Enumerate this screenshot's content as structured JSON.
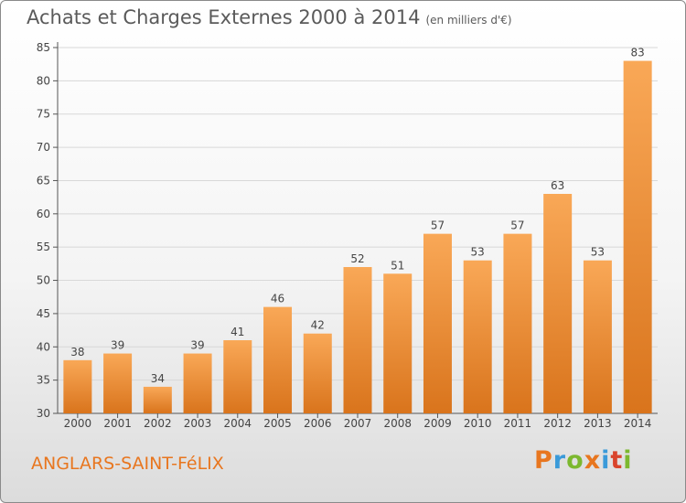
{
  "title": "Achats et Charges Externes 2000 à 2014",
  "unit_label": "(en milliers d'€)",
  "location": "ANGLARS-SAINT-FéLIX",
  "logo_text": "Proxiti",
  "logo_colors": [
    "#e8761f",
    "#3a9ad9",
    "#7cb82f",
    "#e8761f",
    "#3a9ad9",
    "#d9442c",
    "#7cb82f"
  ],
  "colors": {
    "bar_light": "#f9a857",
    "bar_dark": "#d9741c",
    "grid": "#d8d8d8",
    "axis": "#555555"
  },
  "chart_data": {
    "type": "bar",
    "title": "Achats et Charges Externes 2000 à 2014",
    "xlabel": "",
    "ylabel": "",
    "ylim": [
      30,
      85
    ],
    "yticks": [
      30,
      35,
      40,
      45,
      50,
      55,
      60,
      65,
      70,
      75,
      80,
      85
    ],
    "grid": true,
    "categories": [
      "2000",
      "2001",
      "2002",
      "2003",
      "2004",
      "2005",
      "2006",
      "2007",
      "2008",
      "2009",
      "2010",
      "2011",
      "2012",
      "2013",
      "2014"
    ],
    "values": [
      38,
      39,
      34,
      39,
      41,
      46,
      42,
      52,
      51,
      57,
      53,
      57,
      63,
      53,
      83
    ],
    "data_labels": [
      "38",
      "39",
      "34",
      "39",
      "41",
      "46",
      "42",
      "52",
      "51",
      "57",
      "53",
      "57",
      "63",
      "53",
      "83"
    ]
  }
}
